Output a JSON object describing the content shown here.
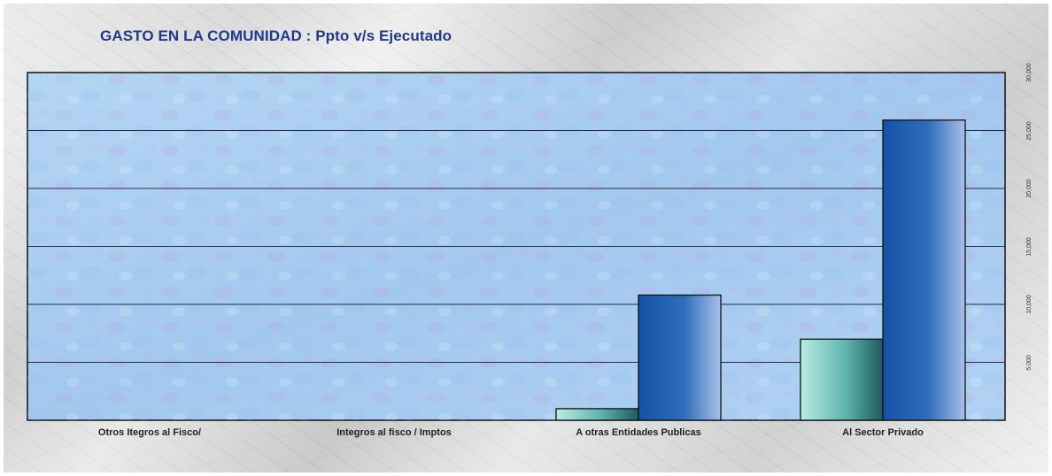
{
  "chart_data": {
    "type": "bar",
    "title": "GASTO EN LA COMUNIDAD : Ppto v/s Ejecutado",
    "categories": [
      "Otros Itegros al Fisco/",
      "Integros al fisco / Imptos",
      "A otras Entidades Publicas",
      "Al Sector Privado"
    ],
    "series": [
      {
        "values": [
          0,
          0,
          1000,
          7000
        ]
      },
      {
        "values": [
          0,
          0,
          10800,
          25900
        ]
      }
    ],
    "yticks": [
      "",
      "5,000",
      "10,000",
      "15,000",
      "20,000",
      "25,000",
      "30,000"
    ],
    "ylim": [
      0,
      30000
    ],
    "y_axis_side": "right",
    "grid": true,
    "legend": "none",
    "colors": {
      "series_1": "#5fb3ad",
      "series_2": "#2e6dba",
      "plot_background": "#a8cdf0",
      "title": "#1f3a8a"
    }
  }
}
